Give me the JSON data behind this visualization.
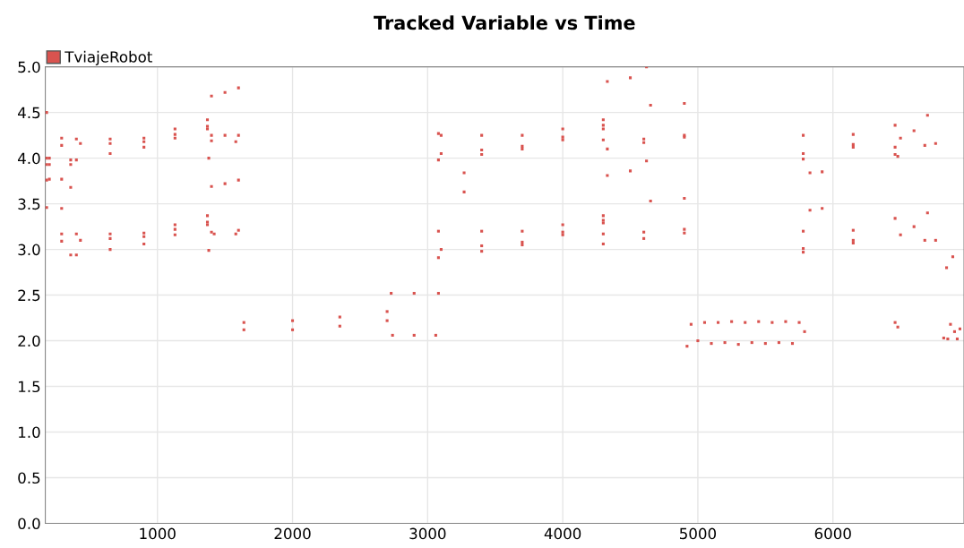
{
  "chart_data": {
    "type": "scatter",
    "title": "Tracked Variable vs Time",
    "legend": "top left",
    "grid": true,
    "marker": "square",
    "xlim": [
      170,
      6970
    ],
    "xticks": [
      1000,
      2000,
      3000,
      4000,
      5000,
      6000
    ],
    "ylim": [
      0,
      5
    ],
    "yticks": [
      {
        "value": 0,
        "label": "0.0"
      },
      {
        "value": 0.5,
        "label": "0.5"
      },
      {
        "value": 1,
        "label": "1.0"
      },
      {
        "value": 1.5,
        "label": "1.5"
      },
      {
        "value": 2,
        "label": "2.0"
      },
      {
        "value": 2.5,
        "label": "2.5"
      },
      {
        "value": 3,
        "label": "3.0"
      },
      {
        "value": 3.5,
        "label": "3.5"
      },
      {
        "value": 4,
        "label": "4.0"
      },
      {
        "value": 4.5,
        "label": "4.5"
      },
      {
        "value": 5,
        "label": "5.0"
      }
    ],
    "series": [
      {
        "name": "TviajeRobot",
        "color": "#d9534f",
        "x": [
          180,
          180,
          200,
          180,
          200,
          180,
          200,
          180,
          291,
          291,
          291,
          291,
          291,
          291,
          358,
          358,
          358,
          358,
          400,
          650,
          900,
          1130,
          1370,
          430,
          650,
          900,
          1130,
          1370,
          400,
          650,
          900,
          1130,
          1370,
          400,
          650,
          900,
          1130,
          1370,
          430,
          650,
          900,
          1130,
          1370,
          400,
          650,
          900,
          1130,
          1370,
          1380,
          1380,
          1400,
          1500,
          1600,
          1400,
          1500,
          1600,
          1400,
          1580,
          1400,
          1500,
          1600,
          1400,
          1600,
          1420,
          1580,
          1640,
          2000,
          2350,
          2700,
          1640,
          2000,
          2350,
          2700,
          2730,
          2900,
          3080,
          2740,
          2900,
          3060,
          3080,
          3100,
          3400,
          3700,
          4000,
          4300,
          3100,
          3400,
          3700,
          4000,
          4300,
          3080,
          3400,
          3700,
          4000,
          4300,
          3270,
          3270,
          3080,
          3400,
          3700,
          4000,
          4300,
          3100,
          3400,
          3700,
          4000,
          4300,
          3080,
          3400,
          3700,
          4000,
          4300,
          4330,
          4500,
          4620,
          4330,
          4500,
          4620,
          4300,
          4600,
          4900,
          4330,
          4600,
          4900,
          4300,
          4600,
          4900,
          4300,
          4600,
          4900,
          4650,
          4900,
          4650,
          4900,
          4920,
          4950,
          5000,
          5050,
          5100,
          5150,
          5200,
          5250,
          5300,
          5350,
          5400,
          5450,
          5500,
          5550,
          5600,
          5650,
          5700,
          5750,
          5790,
          5780,
          6150,
          5780,
          6150,
          5780,
          6150,
          5830,
          5920,
          5830,
          5920,
          5780,
          6150,
          5780,
          6150,
          5780,
          6150,
          6460,
          6460,
          6460,
          6480,
          6460,
          6460,
          6480,
          6500,
          6600,
          6700,
          6500,
          6600,
          6700,
          6680,
          6760,
          6680,
          6760,
          6841,
          6887,
          6820,
          6850,
          6870,
          6900,
          6920,
          6940
        ],
        "values": [
          4.5,
          4.0,
          4.0,
          3.93,
          3.93,
          3.76,
          3.77,
          3.46,
          4.22,
          4.14,
          3.77,
          3.45,
          3.17,
          3.09,
          3.98,
          3.93,
          3.68,
          2.94,
          4.21,
          4.21,
          4.22,
          4.32,
          4.42,
          4.16,
          4.16,
          4.18,
          4.26,
          4.35,
          3.98,
          4.05,
          4.12,
          4.22,
          4.32,
          3.17,
          3.17,
          3.18,
          3.27,
          3.37,
          3.1,
          3.12,
          3.14,
          3.22,
          3.3,
          2.94,
          3.0,
          3.06,
          3.16,
          3.27,
          4.0,
          2.99,
          4.68,
          4.72,
          4.77,
          4.25,
          4.25,
          4.25,
          4.19,
          4.18,
          3.69,
          3.72,
          3.76,
          3.19,
          3.21,
          3.17,
          3.17,
          2.2,
          2.22,
          2.26,
          2.32,
          2.12,
          2.12,
          2.16,
          2.22,
          2.52,
          2.52,
          2.52,
          2.06,
          2.06,
          2.06,
          4.27,
          4.25,
          4.25,
          4.25,
          4.32,
          4.42,
          4.05,
          4.09,
          4.13,
          4.23,
          4.36,
          3.98,
          4.04,
          4.1,
          4.2,
          4.32,
          3.84,
          3.63,
          3.2,
          3.2,
          3.2,
          3.27,
          3.37,
          3.0,
          3.04,
          3.08,
          3.19,
          3.32,
          2.91,
          2.98,
          3.05,
          3.16,
          3.29,
          4.84,
          4.88,
          5.0,
          3.81,
          3.86,
          3.97,
          4.2,
          4.21,
          4.23,
          4.1,
          4.17,
          4.25,
          3.17,
          3.19,
          3.22,
          3.06,
          3.12,
          3.18,
          4.58,
          4.6,
          3.53,
          3.56,
          1.94,
          2.18,
          2.0,
          2.2,
          1.97,
          2.2,
          1.98,
          2.21,
          1.96,
          2.2,
          1.98,
          2.21,
          1.97,
          2.2,
          1.98,
          2.21,
          1.97,
          2.2,
          2.1,
          4.25,
          4.26,
          4.05,
          4.12,
          3.99,
          4.15,
          3.84,
          3.85,
          3.43,
          3.45,
          3.2,
          3.21,
          2.97,
          3.1,
          3.01,
          3.07,
          4.36,
          4.12,
          4.04,
          4.02,
          3.34,
          2.2,
          2.15,
          4.22,
          4.3,
          4.47,
          3.16,
          3.25,
          3.4,
          4.14,
          4.16,
          3.1,
          3.1,
          2.8,
          2.92,
          2.03,
          2.02,
          2.18,
          2.1,
          2.02,
          2.13
        ]
      }
    ]
  }
}
